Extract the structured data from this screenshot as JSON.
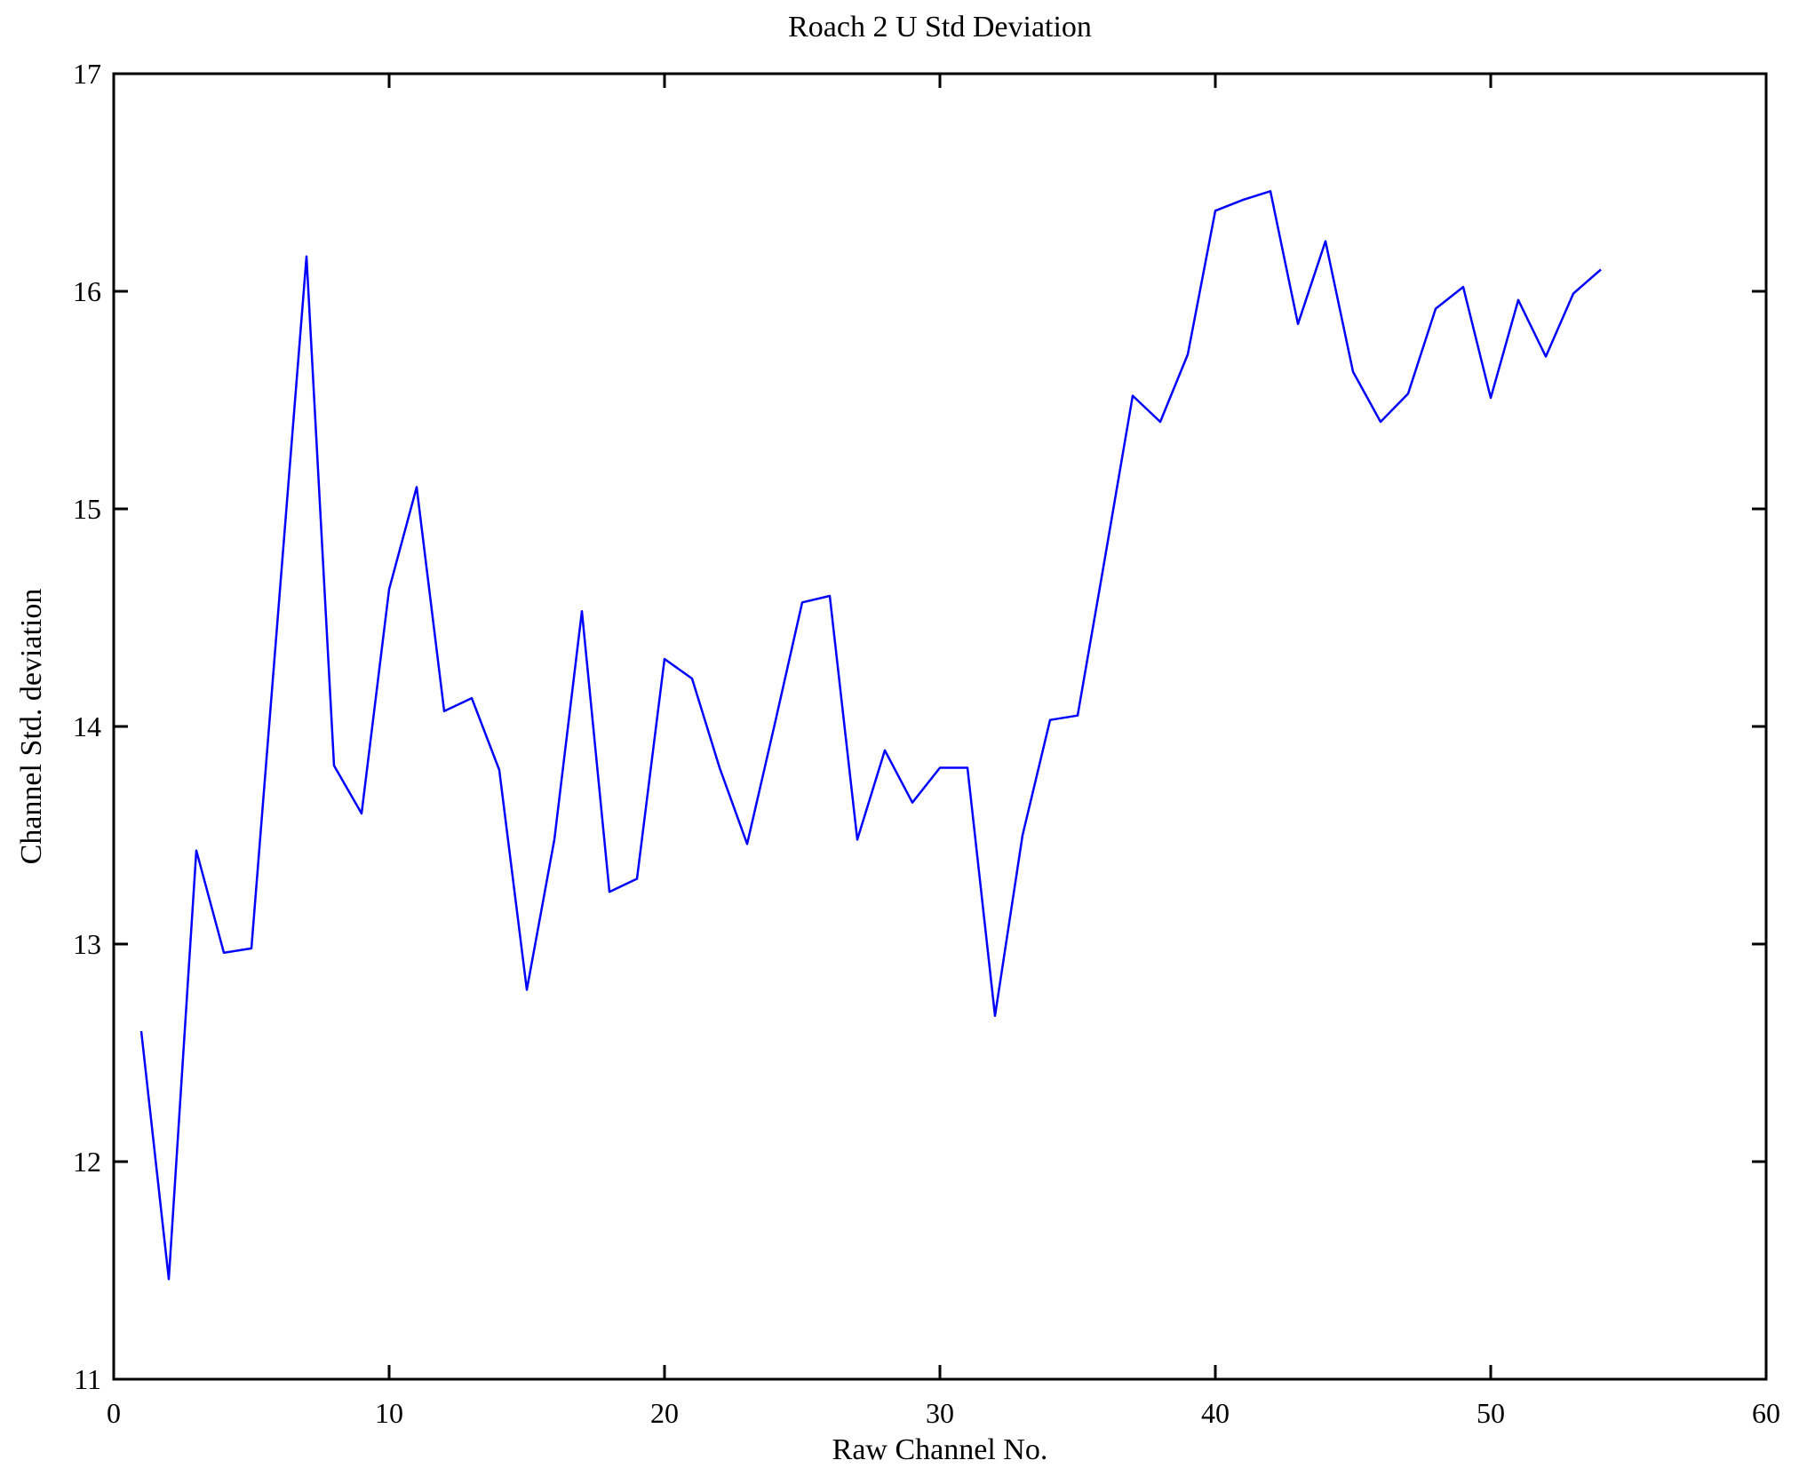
{
  "figure": {
    "background_color": "#ffffff",
    "axis_color": "#000000"
  },
  "chart_data": {
    "type": "line",
    "title": "Roach 2 U Std Deviation",
    "xlabel": "Raw Channel No.",
    "ylabel": "Channel Std. deviation",
    "xlim": [
      0,
      60
    ],
    "ylim": [
      11,
      17
    ],
    "xticks": [
      0,
      10,
      20,
      30,
      40,
      50,
      60
    ],
    "yticks": [
      11,
      12,
      13,
      14,
      15,
      16,
      17
    ],
    "grid": false,
    "legend_position": "none",
    "series": [
      {
        "name": "channel-std-deviation",
        "color": "#0000ff",
        "x": [
          1,
          2,
          3,
          4,
          5,
          6,
          7,
          8,
          9,
          10,
          11,
          12,
          13,
          14,
          15,
          16,
          17,
          18,
          19,
          20,
          21,
          22,
          23,
          24,
          25,
          26,
          27,
          28,
          29,
          30,
          31,
          32,
          33,
          34,
          35,
          36,
          37,
          38,
          39,
          40,
          41,
          42,
          43,
          44,
          45,
          46,
          47,
          48,
          49,
          50,
          51,
          52,
          53,
          54
        ],
        "y": [
          12.6,
          11.46,
          13.43,
          12.96,
          12.98,
          14.57,
          16.16,
          13.82,
          13.6,
          14.63,
          15.1,
          14.07,
          14.13,
          13.8,
          12.79,
          13.48,
          14.53,
          13.24,
          13.3,
          14.31,
          14.22,
          13.81,
          13.46,
          14.01,
          14.57,
          14.6,
          13.48,
          13.89,
          13.65,
          13.81,
          13.81,
          12.67,
          13.5,
          14.03,
          14.05,
          14.78,
          15.52,
          15.4,
          15.71,
          16.37,
          16.42,
          16.46,
          15.85,
          16.23,
          15.63,
          15.4,
          15.53,
          15.92,
          16.02,
          15.51,
          15.96,
          15.7,
          15.99,
          16.1
        ]
      }
    ]
  }
}
